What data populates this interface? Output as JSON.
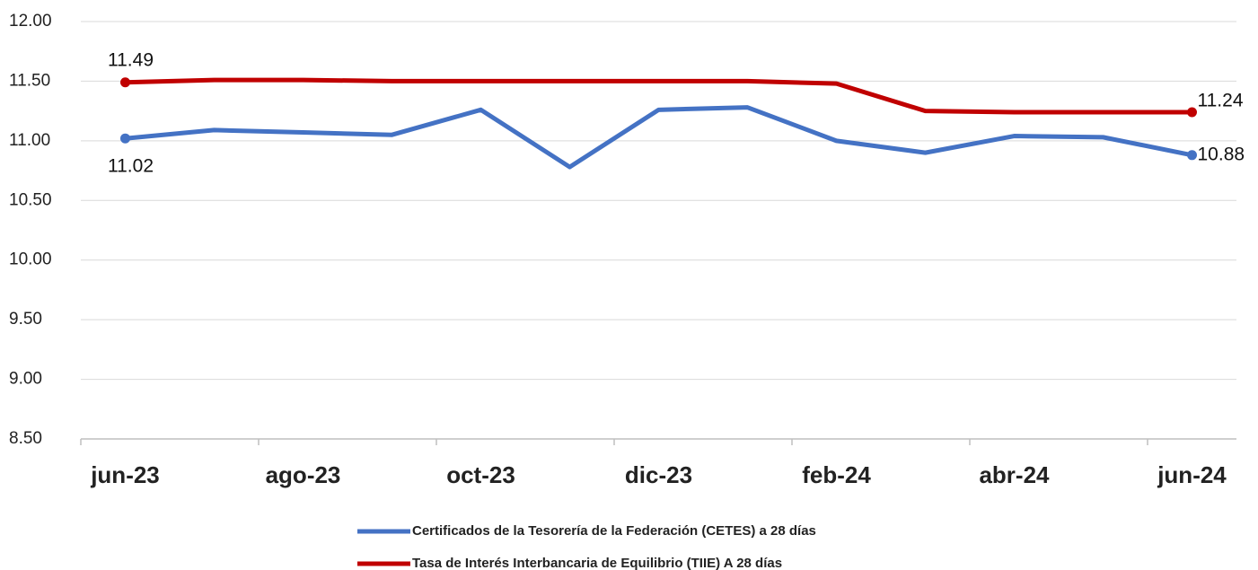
{
  "chart_data": {
    "type": "line",
    "categories": [
      "jun-23",
      null,
      "ago-23",
      null,
      "oct-23",
      null,
      "dic-23",
      null,
      "feb-24",
      null,
      "abr-24",
      null,
      "jun-24"
    ],
    "series": [
      {
        "name": "Certificados de la Tesorería de la Federación (CETES) a 28 días",
        "color": "#4472c4",
        "values": [
          11.02,
          11.09,
          11.07,
          11.05,
          11.26,
          10.78,
          11.26,
          11.28,
          11.0,
          10.9,
          11.04,
          11.03,
          10.88
        ],
        "value_labels": [
          "11.02",
          null,
          null,
          null,
          null,
          null,
          null,
          null,
          null,
          null,
          null,
          null,
          "10.88"
        ]
      },
      {
        "name": "Tasa de Interés Interbancaria de Equilibrio (TIIE) A 28 días",
        "color": "#c00000",
        "values": [
          11.49,
          11.51,
          11.51,
          11.5,
          11.5,
          11.5,
          11.5,
          11.5,
          11.48,
          11.25,
          11.24,
          11.24,
          11.24
        ],
        "value_labels": [
          "11.49",
          null,
          null,
          null,
          null,
          null,
          null,
          null,
          null,
          null,
          null,
          null,
          "11.24"
        ]
      }
    ],
    "ylim": [
      8.5,
      12.0
    ],
    "yticks": [
      {
        "value": 8.5,
        "label": "8.50"
      },
      {
        "value": 9.0,
        "label": "9.00"
      },
      {
        "value": 9.5,
        "label": "9.50"
      },
      {
        "value": 10.0,
        "label": "10.00"
      },
      {
        "value": 10.5,
        "label": "10.50"
      },
      {
        "value": 11.0,
        "label": "11.00"
      },
      {
        "value": 11.5,
        "label": "11.50"
      },
      {
        "value": 12.0,
        "label": "12.00"
      }
    ],
    "grid": true,
    "legend": "bottom"
  }
}
